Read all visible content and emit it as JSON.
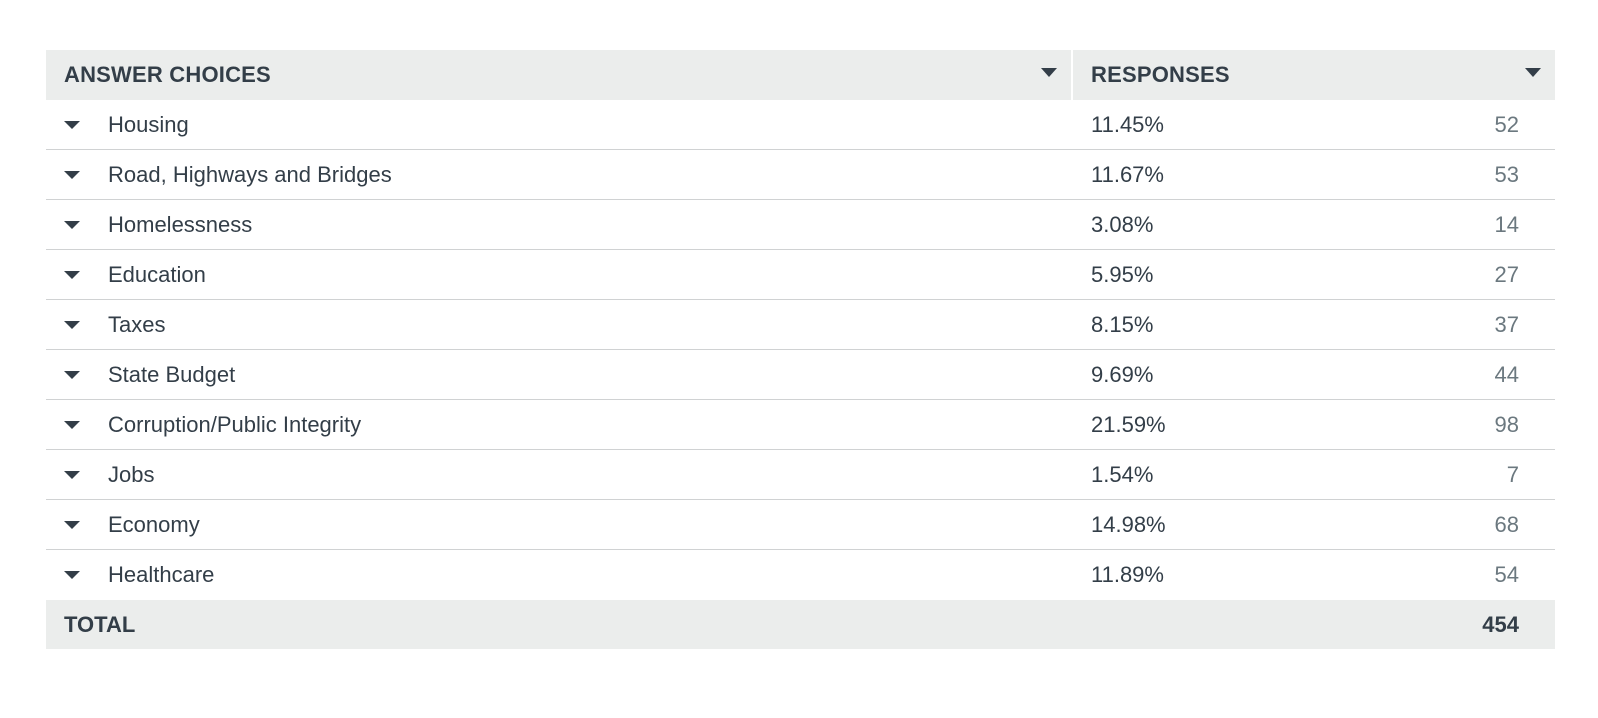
{
  "table": {
    "headers": {
      "choices": "ANSWER CHOICES",
      "responses": "RESPONSES"
    },
    "rows": [
      {
        "label": "Housing",
        "percent": "11.45%",
        "count": "52"
      },
      {
        "label": "Road, Highways and Bridges",
        "percent": "11.67%",
        "count": "53"
      },
      {
        "label": "Homelessness",
        "percent": "3.08%",
        "count": "14"
      },
      {
        "label": "Education",
        "percent": "5.95%",
        "count": "27"
      },
      {
        "label": "Taxes",
        "percent": "8.15%",
        "count": "37"
      },
      {
        "label": "State Budget",
        "percent": "9.69%",
        "count": "44"
      },
      {
        "label": "Corruption/Public Integrity",
        "percent": "21.59%",
        "count": "98"
      },
      {
        "label": "Jobs",
        "percent": "1.54%",
        "count": "7"
      },
      {
        "label": "Economy",
        "percent": "14.98%",
        "count": "68"
      },
      {
        "label": "Healthcare",
        "percent": "11.89%",
        "count": "54"
      }
    ],
    "total": {
      "label": "TOTAL",
      "value": "454"
    }
  },
  "icons": {
    "sort": "caret-down-icon",
    "row_expand": "caret-down-icon"
  },
  "colors": {
    "header_bg": "#ebedec",
    "text": "#333e48",
    "muted_text": "#6b787f",
    "divider": "#d0d2d3"
  }
}
